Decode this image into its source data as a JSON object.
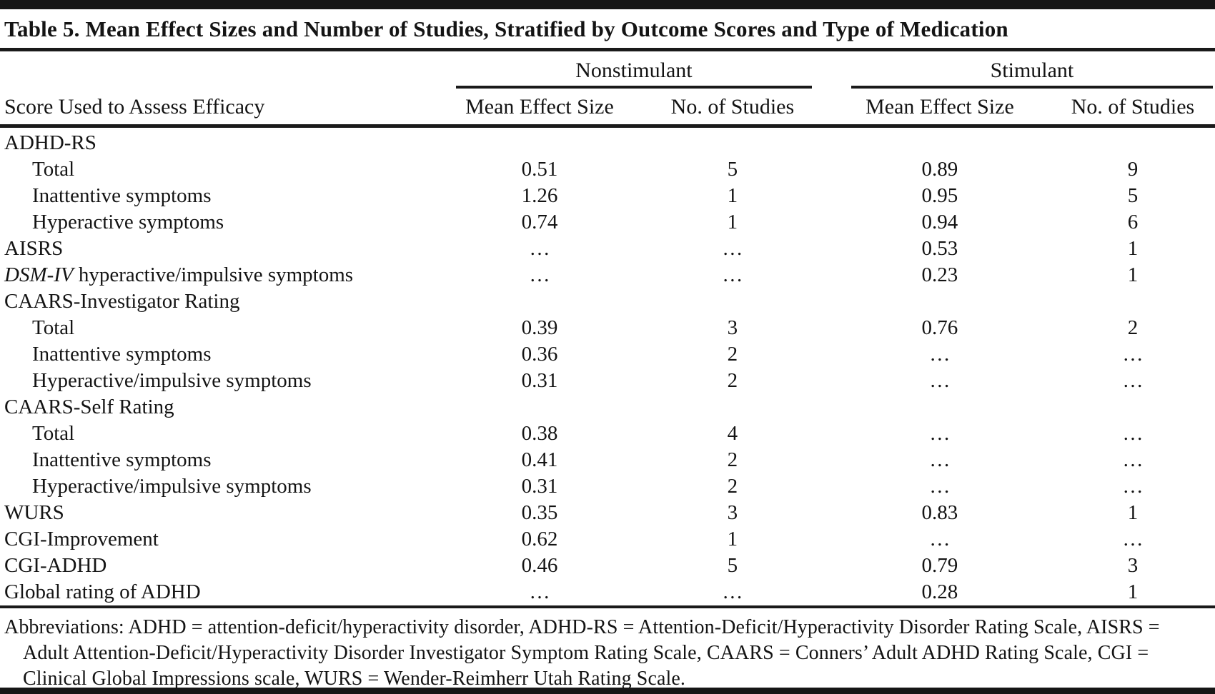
{
  "title": "Table 5. Mean Effect Sizes and Number of Studies, Stratified by Outcome Scores and Type of Medication",
  "table": {
    "row_header": "Score Used to Assess Efficacy",
    "groups": [
      {
        "label": "Nonstimulant",
        "columns": [
          "Mean Effect Size",
          "No. of Studies"
        ]
      },
      {
        "label": "Stimulant",
        "columns": [
          "Mean Effect Size",
          "No. of Studies"
        ]
      }
    ],
    "ellipsis_symbol": "…",
    "rows": [
      {
        "label": "ADHD-RS",
        "indent": false,
        "values": [
          "",
          "",
          "",
          ""
        ]
      },
      {
        "label": "Total",
        "indent": true,
        "values": [
          "0.51",
          "5",
          "0.89",
          "9"
        ]
      },
      {
        "label": "Inattentive symptoms",
        "indent": true,
        "values": [
          "1.26",
          "1",
          "0.95",
          "5"
        ]
      },
      {
        "label": "Hyperactive symptoms",
        "indent": true,
        "values": [
          "0.74",
          "1",
          "0.94",
          "6"
        ]
      },
      {
        "label": "AISRS",
        "indent": false,
        "values": [
          "…",
          "…",
          "0.53",
          "1"
        ]
      },
      {
        "label": " hyperactive/impulsive symptoms",
        "italic_prefix": "DSM-IV",
        "indent": false,
        "values": [
          "…",
          "…",
          "0.23",
          "1"
        ]
      },
      {
        "label": "CAARS-Investigator Rating",
        "indent": false,
        "values": [
          "",
          "",
          "",
          ""
        ]
      },
      {
        "label": "Total",
        "indent": true,
        "values": [
          "0.39",
          "3",
          "0.76",
          "2"
        ]
      },
      {
        "label": "Inattentive symptoms",
        "indent": true,
        "values": [
          "0.36",
          "2",
          "…",
          "…"
        ]
      },
      {
        "label": "Hyperactive/impulsive symptoms",
        "indent": true,
        "values": [
          "0.31",
          "2",
          "…",
          "…"
        ]
      },
      {
        "label": "CAARS-Self Rating",
        "indent": false,
        "values": [
          "",
          "",
          "",
          ""
        ]
      },
      {
        "label": "Total",
        "indent": true,
        "values": [
          "0.38",
          "4",
          "…",
          "…"
        ]
      },
      {
        "label": "Inattentive symptoms",
        "indent": true,
        "values": [
          "0.41",
          "2",
          "…",
          "…"
        ]
      },
      {
        "label": "Hyperactive/impulsive symptoms",
        "indent": true,
        "values": [
          "0.31",
          "2",
          "…",
          "…"
        ]
      },
      {
        "label": "WURS",
        "indent": false,
        "values": [
          "0.35",
          "3",
          "0.83",
          "1"
        ]
      },
      {
        "label": "CGI-Improvement",
        "indent": false,
        "values": [
          "0.62",
          "1",
          "…",
          "…"
        ]
      },
      {
        "label": "CGI-ADHD",
        "indent": false,
        "values": [
          "0.46",
          "5",
          "0.79",
          "3"
        ]
      },
      {
        "label": "Global rating of ADHD",
        "indent": false,
        "values": [
          "…",
          "…",
          "0.28",
          "1"
        ]
      }
    ]
  },
  "footnote": "Abbreviations: ADHD = attention-deficit/hyperactivity disorder, ADHD-RS = Attention-Deficit/Hyperactivity Disorder Rating Scale, AISRS = Adult Attention-Deficit/Hyperactivity Disorder Investigator Symptom Rating Scale, CAARS = Conners’ Adult ADHD Rating Scale, CGI = Clinical Global Impressions scale, WURS = Wender-Reimherr Utah Rating Scale.",
  "colors": {
    "text": "#141414",
    "rule": "#1a1a1a",
    "background": "#ffffff"
  }
}
